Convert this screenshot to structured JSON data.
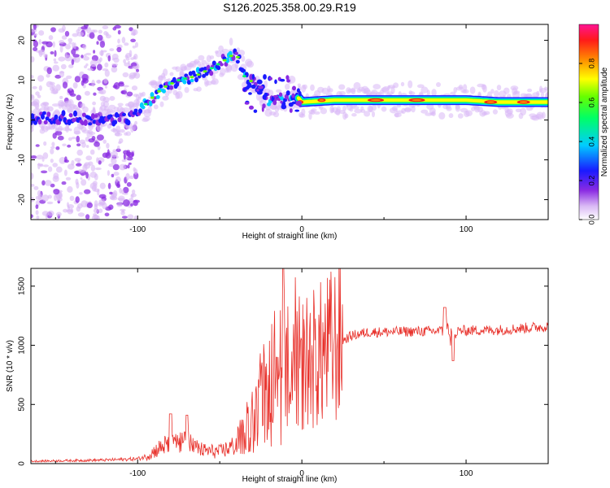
{
  "title": "S126.2025.358.00.29.R19",
  "chart_data": [
    {
      "type": "heatmap",
      "name": "spectrogram",
      "xlabel": "Height of straight line (km)",
      "ylabel": "Frequency (Hz)",
      "xlim": [
        -165,
        150
      ],
      "ylim": [
        -25,
        24
      ],
      "x_ticks": [
        -100,
        0,
        100
      ],
      "y_ticks": [
        -20,
        -10,
        0,
        10,
        20
      ],
      "colorbar": {
        "label": "Normalized spectral amplitude",
        "range": [
          0,
          1
        ],
        "ticks": [
          0.0,
          0.2,
          0.4,
          0.6,
          0.8
        ]
      },
      "ridge": [
        {
          "x": -165,
          "f": 0.5
        },
        {
          "x": -140,
          "f": 0.5
        },
        {
          "x": -120,
          "f": 0.0
        },
        {
          "x": -105,
          "f": 0.5
        },
        {
          "x": -95,
          "f": 4
        },
        {
          "x": -85,
          "f": 8
        },
        {
          "x": -75,
          "f": 10
        },
        {
          "x": -65,
          "f": 11
        },
        {
          "x": -55,
          "f": 13
        },
        {
          "x": -45,
          "f": 15.5
        },
        {
          "x": -40,
          "f": 17
        },
        {
          "x": -35,
          "f": 11
        },
        {
          "x": -25,
          "f": 8
        },
        {
          "x": -20,
          "f": 5
        },
        {
          "x": -10,
          "f": 5
        },
        {
          "x": -5,
          "f": 7
        },
        {
          "x": 0,
          "f": 4.5
        },
        {
          "x": 20,
          "f": 5
        },
        {
          "x": 60,
          "f": 5
        },
        {
          "x": 80,
          "f": 5
        },
        {
          "x": 100,
          "f": 5
        },
        {
          "x": 120,
          "f": 4.5
        },
        {
          "x": 150,
          "f": 4.5
        }
      ]
    },
    {
      "type": "line",
      "name": "snr",
      "xlabel": "Height of straight line (km)",
      "ylabel": "SNR (10 * v/v)",
      "xlim": [
        -165,
        150
      ],
      "ylim": [
        0,
        1650
      ],
      "x_ticks": [
        -100,
        0,
        100
      ],
      "y_ticks": [
        0,
        500,
        1000,
        1500
      ],
      "color": "#e8302a",
      "envelope": [
        {
          "x": -165,
          "y": 20
        },
        {
          "x": -120,
          "y": 30
        },
        {
          "x": -100,
          "y": 40
        },
        {
          "x": -95,
          "y": 60
        },
        {
          "x": -88,
          "y": 120
        },
        {
          "x": -80,
          "y": 180
        },
        {
          "x": -70,
          "y": 170
        },
        {
          "x": -60,
          "y": 110
        },
        {
          "x": -50,
          "y": 100
        },
        {
          "x": -40,
          "y": 160
        },
        {
          "x": -30,
          "y": 350
        },
        {
          "x": -25,
          "y": 500
        },
        {
          "x": -20,
          "y": 600
        },
        {
          "x": -10,
          "y": 750
        },
        {
          "x": 0,
          "y": 850
        },
        {
          "x": 10,
          "y": 900
        },
        {
          "x": 20,
          "y": 1000
        },
        {
          "x": 30,
          "y": 1080
        },
        {
          "x": 40,
          "y": 1110
        },
        {
          "x": 80,
          "y": 1120
        },
        {
          "x": 120,
          "y": 1130
        },
        {
          "x": 150,
          "y": 1160
        }
      ],
      "spikes": [
        {
          "x": -80,
          "y": 420
        },
        {
          "x": -70,
          "y": 410
        },
        {
          "x": -15,
          "y": 900
        },
        {
          "x": -11,
          "y": 1650
        },
        {
          "x": 87,
          "y": 1320
        },
        {
          "x": 92,
          "y": 870
        }
      ]
    }
  ]
}
